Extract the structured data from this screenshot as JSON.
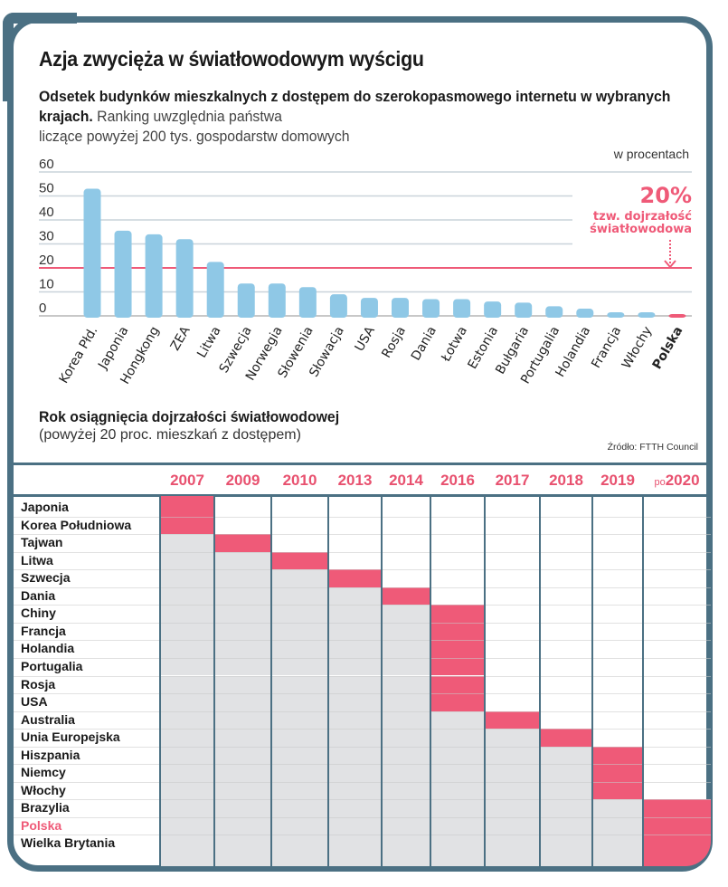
{
  "header": {
    "title": "Azja zwycięża w światłowodowym wyścigu",
    "subtitle_bold": "Odsetek budynków mieszkalnych z dostępem do szerokopasmowego internetu w wybranych krajach.",
    "subtitle_regular_1": " Ranking uwzględnia państwa",
    "subtitle_regular_2": "liczące powyżej 200 tys. gospodarstw domowych",
    "unit": "w procentach"
  },
  "colors": {
    "frame": "#4b7083",
    "bar": "#8fc8e6",
    "highlight": "#ef5a78",
    "grid": "#c9d3da",
    "grey_cell": "#e1e2e4"
  },
  "chart_data": [
    {
      "type": "bar",
      "title": "Odsetek budynków mieszkalnych z dostępem do szerokopasmowego internetu w wybranych krajach",
      "ylabel": "w procentach",
      "xlabel": "",
      "categories": [
        "Korea Płd.",
        "Japonia",
        "Hongkong",
        "ZEA",
        "Litwa",
        "Szwecja",
        "Norwegia",
        "Słowenia",
        "Słowacja",
        "USA",
        "Rosja",
        "Dania",
        "Łotwa",
        "Estonia",
        "Bułgaria",
        "Portugalia",
        "Holandia",
        "Francja",
        "Włochy",
        "Polska"
      ],
      "values": [
        53,
        35.5,
        34,
        32,
        22.5,
        13.5,
        13.5,
        12,
        9,
        7.5,
        7.5,
        7,
        7,
        6,
        5.5,
        4,
        3,
        1.5,
        1.5,
        0.5
      ],
      "highlight_category": "Polska",
      "ylim": [
        0,
        60
      ],
      "yticks": [
        0,
        10,
        20,
        30,
        40,
        50,
        60
      ],
      "grid": true,
      "reference_line": {
        "value": 20,
        "label_value": "20%",
        "label_line1": "tzw. dojrzałość",
        "label_line2": "światłowodowa"
      }
    },
    {
      "type": "table",
      "title": "Rok osiągnięcia dojrzałości światłowodowej",
      "subtitle": "(powyżej 20 proc. mieszkań z dostępem)",
      "source": "Źródło: FTTH Council",
      "columns": [
        {
          "prefix": "",
          "label": "2007"
        },
        {
          "prefix": "",
          "label": "2009"
        },
        {
          "prefix": "",
          "label": "2010"
        },
        {
          "prefix": "",
          "label": "2013"
        },
        {
          "prefix": "",
          "label": "2014"
        },
        {
          "prefix": "",
          "label": "2016"
        },
        {
          "prefix": "",
          "label": "2017"
        },
        {
          "prefix": "",
          "label": "2018"
        },
        {
          "prefix": "",
          "label": "2019"
        },
        {
          "prefix": "po",
          "label": "2020"
        }
      ],
      "rows": [
        {
          "country": "Japonia",
          "year_index": 0
        },
        {
          "country": "Korea Południowa",
          "year_index": 0
        },
        {
          "country": "Tajwan",
          "year_index": 1
        },
        {
          "country": "Litwa",
          "year_index": 2
        },
        {
          "country": "Szwecja",
          "year_index": 3
        },
        {
          "country": "Dania",
          "year_index": 4
        },
        {
          "country": "Chiny",
          "year_index": 5
        },
        {
          "country": "Francja",
          "year_index": 5
        },
        {
          "country": "Holandia",
          "year_index": 5
        },
        {
          "country": "Portugalia",
          "year_index": 5
        },
        {
          "country": "Rosja",
          "year_index": 5
        },
        {
          "country": "USA",
          "year_index": 5
        },
        {
          "country": "Australia",
          "year_index": 6
        },
        {
          "country": "Unia Europejska",
          "year_index": 7
        },
        {
          "country": "Hiszpania",
          "year_index": 8
        },
        {
          "country": "Niemcy",
          "year_index": 8
        },
        {
          "country": "Włochy",
          "year_index": 8
        },
        {
          "country": "Brazylia",
          "year_index": 9
        },
        {
          "country": "Polska",
          "year_index": 9,
          "highlight": true
        },
        {
          "country": "Wielka Brytania",
          "year_index": 9
        }
      ]
    }
  ]
}
